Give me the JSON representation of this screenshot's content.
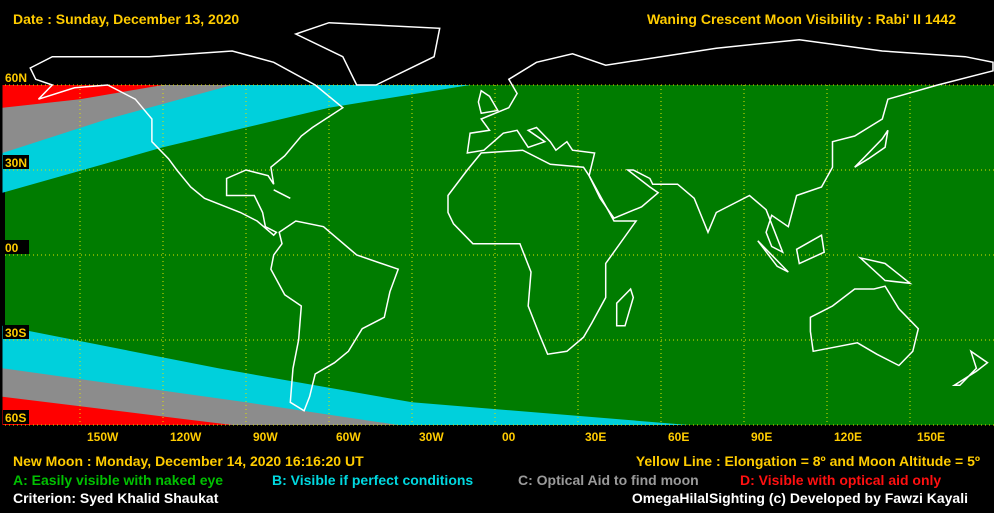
{
  "header": {
    "date": "Date : Sunday, December 13, 2020",
    "title": "Waning Crescent Moon Visibility : Rabi' II 1442"
  },
  "map": {
    "lat_labels": [
      "60N",
      "30N",
      "00",
      "30S",
      "60S"
    ],
    "lon_labels": [
      "150W",
      "120W",
      "90W",
      "60W",
      "30W",
      "00",
      "30E",
      "60E",
      "90E",
      "120E",
      "150E"
    ]
  },
  "footer": {
    "new_moon": "New Moon : Monday, December 14, 2020  16:16:20  UT",
    "yellow_line": "Yellow Line : Elongation = 8º  and Moon Altitude = 5º",
    "legend": [
      "A: Easily visible with naked eye",
      "B: Visible if perfect conditions",
      "C: Optical Aid to find moon",
      "D: Visible with optical aid only"
    ],
    "criterion": "Criterion: Syed Khalid Shaukat",
    "credit": "OmegaHilalSighting  (c)  Developed by Fawzi Kayali"
  }
}
